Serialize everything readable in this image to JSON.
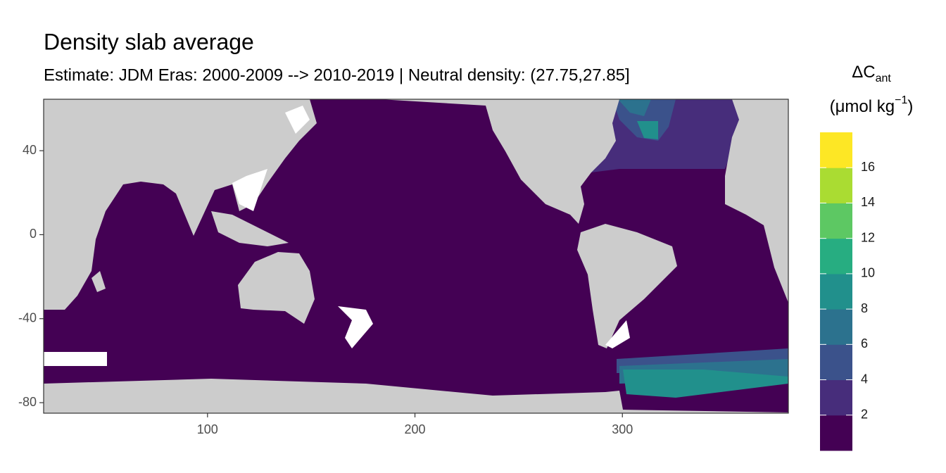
{
  "chart_data": {
    "type": "map",
    "title": "Density slab average",
    "subtitle": "Estimate: JDM Eras: 2000-2009 --> 2010-2019 | Neutral density: (27.75,27.85]",
    "xlim": [
      21,
      380
    ],
    "ylim": [
      -85,
      64.5
    ],
    "xticks": [
      100,
      200,
      300
    ],
    "yticks": [
      40,
      0,
      -40,
      -80
    ],
    "ocean_color": "#440154",
    "legend": {
      "title": "ΔC",
      "title_sub": "ant",
      "unit": "(μmol kg",
      "unit_sup": "−1",
      "unit_close": ")",
      "lim": [
        0,
        18
      ],
      "ticks": [
        2,
        4,
        6,
        8,
        10,
        12,
        14,
        16
      ],
      "colors": [
        "#440154",
        "#472D7B",
        "#3B528B",
        "#2C728E",
        "#21908C",
        "#27AD81",
        "#5DC863",
        "#AADC32",
        "#FDE725"
      ]
    }
  }
}
